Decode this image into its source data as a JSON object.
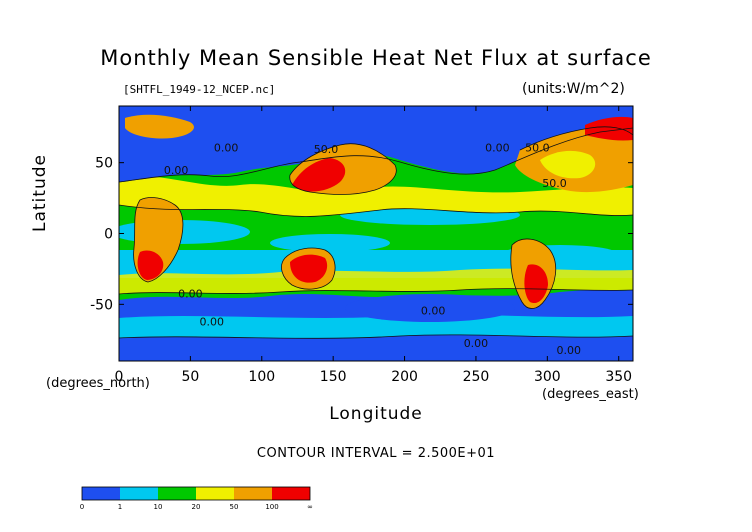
{
  "chart_data": {
    "type": "heatmap",
    "title": "Monthly Mean Sensible Heat Net Flux at surface",
    "source_label": "[SHTFL_1949-12_NCEP.nc]",
    "units_label": "(units:W/m^2)",
    "xlabel": "Longitude",
    "ylabel": "Latitude",
    "x_unit_label": "(degrees_east)",
    "y_unit_label": "(degrees_north)",
    "xlim": [
      0,
      360
    ],
    "ylim": [
      -90,
      90
    ],
    "x_ticks": [
      0,
      50,
      100,
      150,
      200,
      250,
      300,
      350
    ],
    "y_ticks": [
      -50,
      0,
      50
    ],
    "contour_interval_text": "CONTOUR INTERVAL = 2.500E+01",
    "contour_labels": [
      {
        "lon": 40,
        "lat": 42,
        "text": "0.00"
      },
      {
        "lon": 75,
        "lat": 58,
        "text": "0.00"
      },
      {
        "lon": 145,
        "lat": 57,
        "text": "50.0"
      },
      {
        "lon": 265,
        "lat": 58,
        "text": "0.00"
      },
      {
        "lon": 293,
        "lat": 58,
        "text": "50.0"
      },
      {
        "lon": 305,
        "lat": 33,
        "text": "50.0"
      },
      {
        "lon": 50,
        "lat": -45,
        "text": "0.00"
      },
      {
        "lon": 65,
        "lat": -65,
        "text": "0.00"
      },
      {
        "lon": 220,
        "lat": -57,
        "text": "0.00"
      },
      {
        "lon": 250,
        "lat": -80,
        "text": "0.00"
      },
      {
        "lon": 315,
        "lat": -85,
        "text": "0.00"
      }
    ],
    "colorbar": {
      "levels": [
        "0",
        "1",
        "10",
        "20",
        "50",
        "100",
        "∞"
      ],
      "colors": [
        "#1e4ff0",
        "#00c8f0",
        "#00c800",
        "#f0f000",
        "#f0a000",
        "#f00000"
      ]
    }
  }
}
